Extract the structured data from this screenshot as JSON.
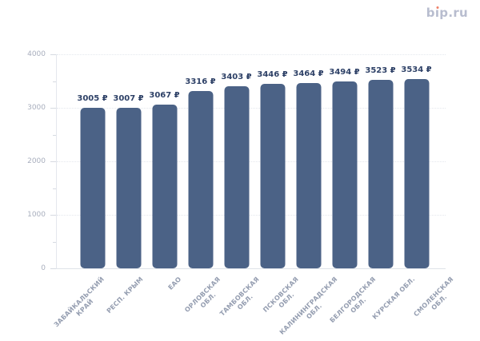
{
  "logo": {
    "label": "bip.ru",
    "before_i": "b",
    "i_glyph": "ı",
    "after_i": "p.ru"
  },
  "colors": {
    "bar": "#4b6286",
    "value_label": "#2e4167",
    "y_axis_label": "#a8aebd",
    "x_axis_label": "#949db0",
    "logo_text": "#b8bdcf",
    "logo_dot": "#ef8168",
    "gridline": "#e4e7ed"
  },
  "chart_data": {
    "type": "bar",
    "title": "",
    "categories": [
      "ЗАБАЙКАЛЬСКИЙ\nКРАЙ",
      "РЕСП. КРЫМ",
      "ЕАО",
      "ОРЛОВСКАЯ\nОБЛ.",
      "ТАМБОВСКАЯ\nОБЛ.",
      "ПСКОВСКАЯ\nОБЛ.",
      "КАЛИНИНГРАДСКАЯ\nОБЛ.",
      "БЕЛГОРОДСКАЯ\nОБЛ.",
      "КУРСКАЯ ОБЛ.",
      "СМОЛЕНСКАЯ\nОБЛ."
    ],
    "values": [
      3005,
      3007,
      3067,
      3316,
      3403,
      3446,
      3464,
      3494,
      3523,
      3534
    ],
    "value_label_suffix": " ₽",
    "value_labels": [
      "3005 ₽",
      "3007 ₽",
      "3067 ₽",
      "3316 ₽",
      "3403 ₽",
      "3446 ₽",
      "3464 ₽",
      "3494 ₽",
      "3523 ₽",
      "3534 ₽"
    ],
    "xlabel": "",
    "ylabel": "",
    "ylim": [
      0,
      4000
    ],
    "yticks": [
      0,
      1000,
      2000,
      3000,
      4000
    ],
    "minor_tick_step": 500,
    "grid": "horizontal-dotted",
    "legend": "none",
    "x_label_rotation_deg": -45
  }
}
